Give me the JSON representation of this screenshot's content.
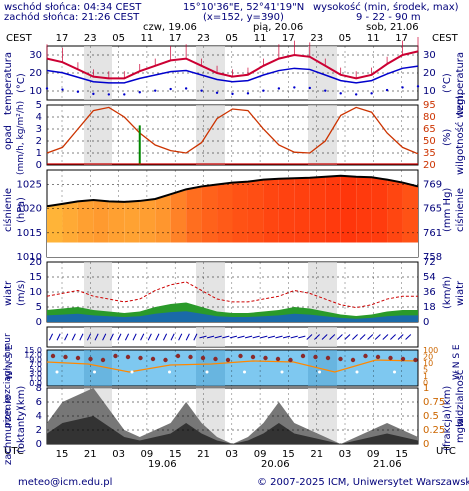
{
  "header": {
    "sunrise": "wschód słońca: 04:34 CEST",
    "sunset": "zachód słońca: 21:26 CEST",
    "coords": "15°10'36\"E, 52°41'19\"N",
    "grid": "(x=152, y=390)",
    "height_title": "wysokość (min, środek, max)",
    "height_values": "9 - 22 - 90 m"
  },
  "timezone_top": "CEST",
  "timezone_bottom": "UTC",
  "days_top": [
    "czw, 19.06",
    "pią, 20.06",
    "sob, 21.06"
  ],
  "hours_top": [
    "17",
    "23",
    "05",
    "11",
    "17",
    "23",
    "05",
    "11",
    "17",
    "23",
    "05",
    "11",
    "17"
  ],
  "hours_bottom": [
    "15",
    "21",
    "03",
    "09",
    "15",
    "21",
    "03",
    "09",
    "15",
    "21",
    "03",
    "09",
    "15"
  ],
  "days_bottom": [
    "19.06",
    "20.06",
    "21.06"
  ],
  "panels": {
    "temperature": {
      "left_label": "temperatura",
      "left_unit": "(°C)",
      "right_label": "temperatura",
      "right_unit": "(°C)",
      "ticks": [
        "30",
        "20",
        "10"
      ]
    },
    "precip": {
      "left_label": "opad",
      "left_unit": "(mm/h, kg/m²/h)",
      "right_label": "wilgotność wzgl.",
      "right_unit": "(%)",
      "ticks_left": [
        "5",
        "4",
        "3",
        "2",
        "1",
        "0"
      ],
      "ticks_right": [
        "95",
        "80",
        "65",
        "50",
        "35",
        "20"
      ]
    },
    "pressure": {
      "left_label": "ciśnienie",
      "left_unit": "(hPa)",
      "right_label": "ciśnienie",
      "right_unit": "(mm Hg)",
      "ticks_left": [
        "1025",
        "1020",
        "1015",
        "1010"
      ],
      "ticks_right": [
        "769",
        "765",
        "761",
        "758"
      ]
    },
    "wind": {
      "left_label": "wiatr",
      "left_unit": "(m/s)",
      "right_label": "wiatr",
      "right_unit": "(km/h)",
      "ticks_left": [
        "20",
        "15",
        "10",
        "5",
        "0"
      ],
      "ticks_right": [
        "72",
        "54",
        "36",
        "18",
        "0"
      ]
    },
    "direction": {
      "left_label": "W N S E",
      "right_label": "W N S E"
    },
    "visibility": {
      "left_label": "pion. rozciągł. chmur",
      "left_unit": "(km)",
      "right_label": "widzialność",
      "right_unit": "(km)",
      "ticks_left": [
        "15.0",
        "12.0",
        "9.0",
        "7.0",
        "5.0",
        "3.0",
        "1.0",
        "0.0"
      ],
      "ticks_right": [
        "100",
        "20",
        "10",
        "5",
        "1",
        "0"
      ]
    },
    "cloud": {
      "left_label": "zachmurzenie",
      "left_unit": "(oktanty)",
      "right_label": "mgła",
      "right_unit": "(frakcja)",
      "ticks_left": [
        "8",
        "6",
        "4",
        "2",
        "0"
      ],
      "ticks_right": [
        "1",
        "0.75",
        "0.5",
        "0.25",
        "0"
      ]
    }
  },
  "footer": {
    "email": "meteo@icm.edu.pl",
    "copyright": "© 2007-2025 ICM, Uniwersytet Warszawski"
  },
  "colors": {
    "temp": "#cc0033",
    "dew": "#0000cc",
    "humidity": "#cc3300",
    "precip": "#008800",
    "pressure": "#000000",
    "wind_avg": "#008800",
    "gust": "#cc0000",
    "visibility": "#ff8800",
    "sky": "#7ec8f0",
    "night": "#d8d8d8"
  },
  "chart_data": {
    "type": "line",
    "x": [
      "15",
      "18",
      "21",
      "00",
      "03",
      "06",
      "09",
      "12",
      "15",
      "18",
      "21",
      "00",
      "03",
      "06",
      "09",
      "12",
      "15",
      "18",
      "21",
      "00",
      "03",
      "06",
      "09",
      "12",
      "15"
    ],
    "series": [
      {
        "name": "temperatura",
        "values": [
          28,
          26,
          22,
          18,
          17,
          17,
          21,
          24,
          27,
          28,
          24,
          20,
          18,
          19,
          24,
          28,
          30,
          29,
          24,
          19,
          17,
          19,
          25,
          30,
          32
        ]
      },
      {
        "name": "wilgotność wzgl.",
        "values": [
          35,
          42,
          65,
          88,
          92,
          80,
          60,
          45,
          38,
          35,
          48,
          78,
          90,
          88,
          65,
          45,
          36,
          35,
          50,
          82,
          92,
          86,
          60,
          42,
          34
        ]
      },
      {
        "name": "ciśnienie",
        "values": [
          1020.5,
          1021,
          1021.5,
          1021.8,
          1021.5,
          1021.4,
          1021.6,
          1022,
          1023,
          1024,
          1024.6,
          1025,
          1025.4,
          1025.6,
          1026,
          1026.2,
          1026.3,
          1026.4,
          1026.6,
          1026.8,
          1026.6,
          1026.5,
          1026,
          1025.4,
          1024.6
        ]
      },
      {
        "name": "wiatr",
        "values": [
          4,
          4.5,
          5,
          4,
          3.5,
          3,
          3.5,
          5,
          6,
          6.5,
          5,
          3.5,
          3,
          3,
          3.5,
          4,
          5,
          4.5,
          3.5,
          2.5,
          2,
          2.5,
          3.5,
          4,
          4
        ]
      },
      {
        "name": "opad",
        "values": [
          0,
          0,
          0,
          0,
          0,
          0,
          3.3,
          0,
          0,
          0,
          0,
          0,
          0,
          0,
          0,
          0,
          0,
          0,
          0,
          0,
          0,
          0,
          0,
          0,
          0
        ]
      }
    ],
    "ylim_temp": [
      5,
      35
    ],
    "ylim_precip": [
      0,
      5
    ],
    "ylim_humidity": [
      20,
      95
    ],
    "ylim_pressure": [
      1010,
      1028
    ],
    "ylim_wind": [
      0,
      20
    ]
  }
}
